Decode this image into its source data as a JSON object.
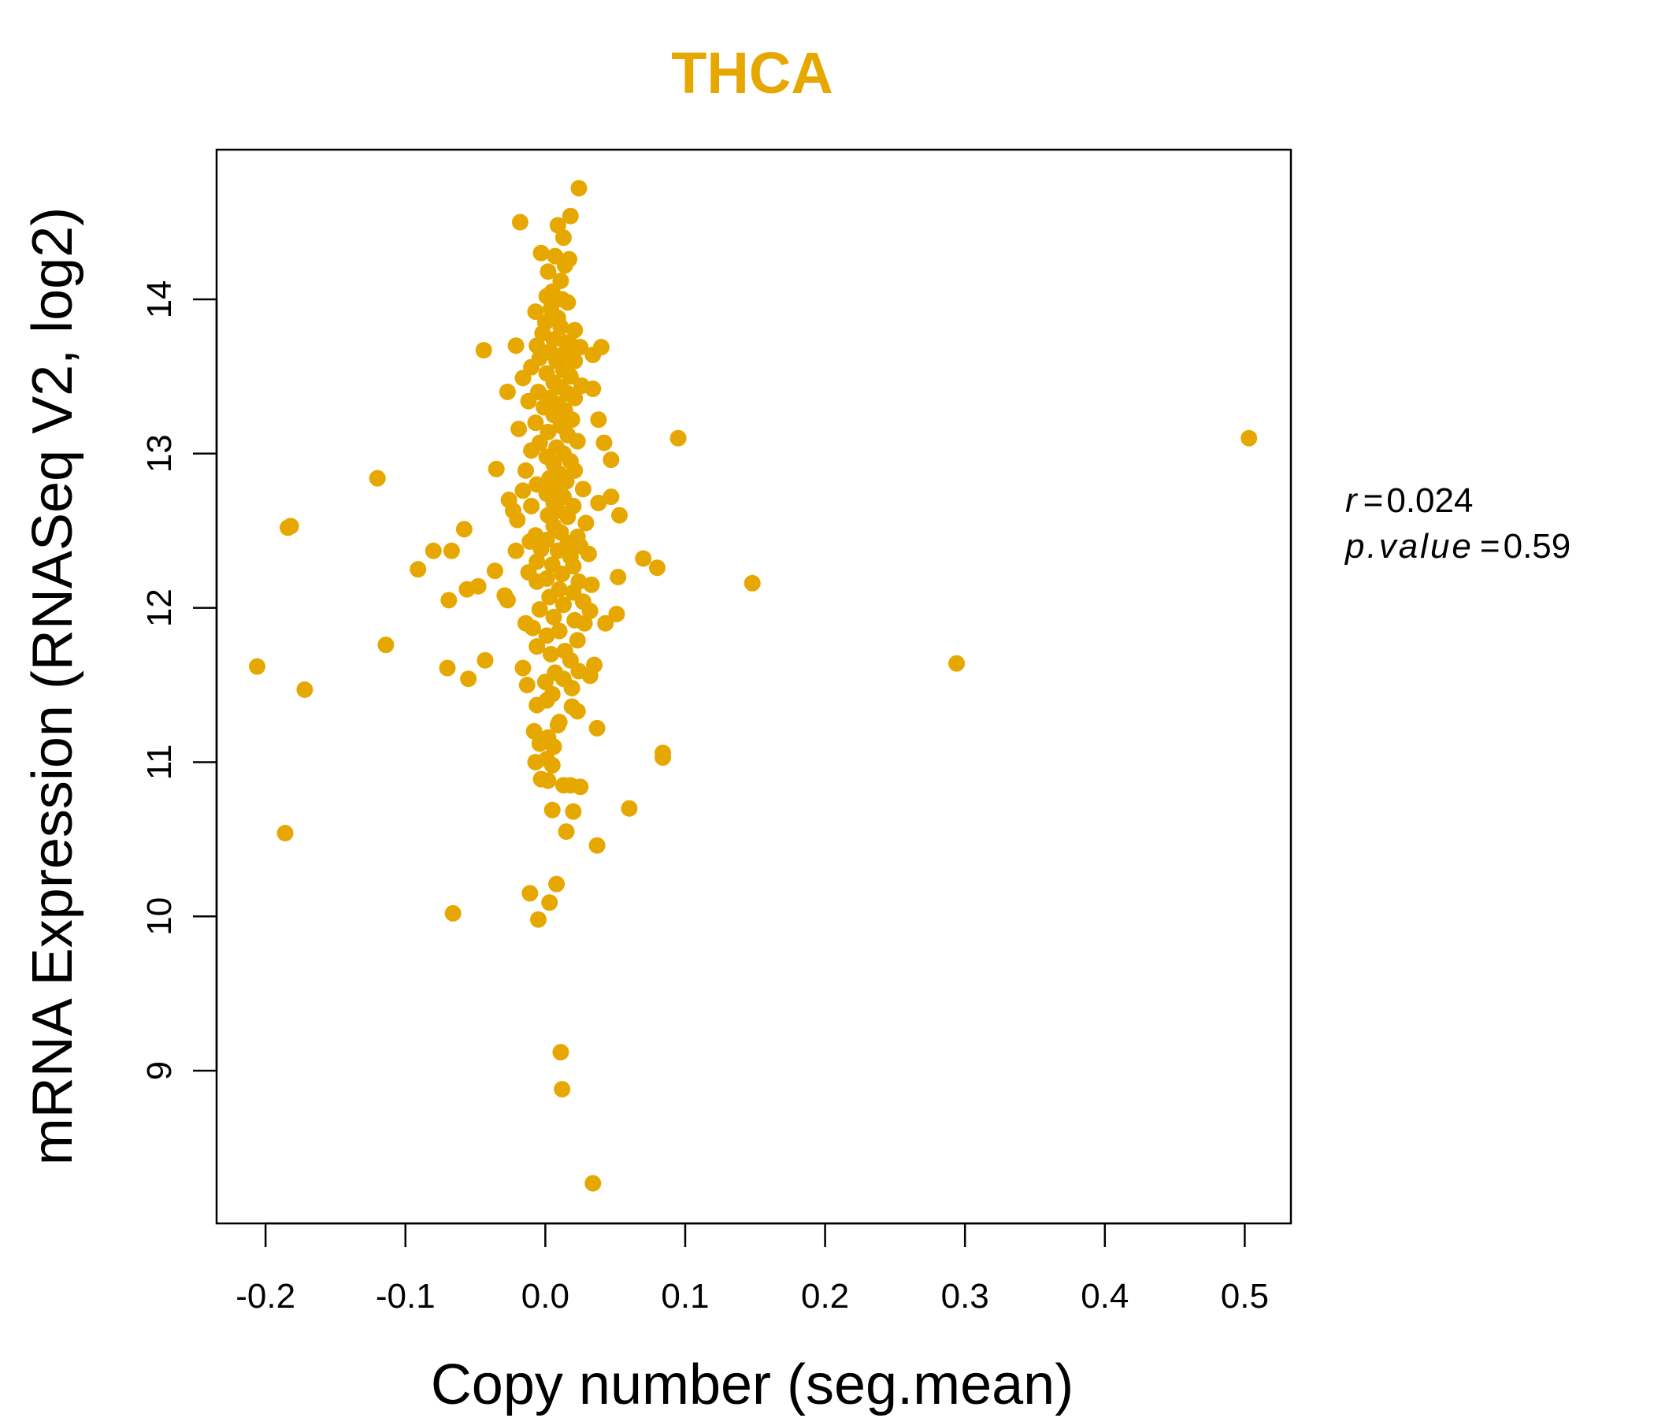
{
  "colors": {
    "point": "#E6A800",
    "title": "#E6A800",
    "axis": "#000000"
  },
  "chart_data": {
    "type": "scatter",
    "title": "THCA",
    "xlabel": "Copy number (seg.mean)",
    "ylabel": "mRNA Expression (RNASeq V2, log2)",
    "xlim": [
      -0.235,
      0.533
    ],
    "ylim": [
      8.01,
      14.97
    ],
    "x_ticks": [
      -0.2,
      -0.1,
      0.0,
      0.1,
      0.2,
      0.3,
      0.4,
      0.5
    ],
    "x_tick_labels": [
      "-0.2",
      "-0.1",
      "0.0",
      "0.1",
      "0.2",
      "0.3",
      "0.4",
      "0.5"
    ],
    "y_ticks": [
      9,
      10,
      11,
      12,
      13,
      14
    ],
    "y_tick_labels": [
      "9",
      "10",
      "11",
      "12",
      "13",
      "14"
    ],
    "grid": false,
    "annotation": {
      "r_label": "r",
      "r_value": "0.024",
      "p_label": "p.value",
      "p_value": "0.59"
    },
    "points": [
      [
        0.024,
        14.72
      ],
      [
        0.018,
        14.54
      ],
      [
        -0.018,
        14.5
      ],
      [
        0.009,
        14.48
      ],
      [
        0.013,
        14.4
      ],
      [
        -0.003,
        14.3
      ],
      [
        0.007,
        14.28
      ],
      [
        0.017,
        14.26
      ],
      [
        0.014,
        14.22
      ],
      [
        0.002,
        14.18
      ],
      [
        0.011,
        14.12
      ],
      [
        0.005,
        14.05
      ],
      [
        0.001,
        14.02
      ],
      [
        0.012,
        14.0
      ],
      [
        0.016,
        13.98
      ],
      [
        0.004,
        13.94
      ],
      [
        -0.007,
        13.92
      ],
      [
        0.009,
        13.88
      ],
      [
        0.0,
        13.85
      ],
      [
        0.011,
        13.82
      ],
      [
        0.021,
        13.8
      ],
      [
        -0.002,
        13.78
      ],
      [
        0.006,
        13.74
      ],
      [
        0.015,
        13.72
      ],
      [
        -0.021,
        13.7
      ],
      [
        -0.006,
        13.7
      ],
      [
        0.019,
        13.7
      ],
      [
        0.025,
        13.69
      ],
      [
        0.04,
        13.69
      ],
      [
        -0.044,
        13.67
      ],
      [
        0.003,
        13.66
      ],
      [
        0.012,
        13.64
      ],
      [
        0.034,
        13.64
      ],
      [
        -0.004,
        13.62
      ],
      [
        0.008,
        13.6
      ],
      [
        0.021,
        13.6
      ],
      [
        -0.01,
        13.56
      ],
      [
        0.013,
        13.54
      ],
      [
        0.001,
        13.52
      ],
      [
        0.018,
        13.5
      ],
      [
        -0.016,
        13.49
      ],
      [
        0.006,
        13.46
      ],
      [
        0.026,
        13.44
      ],
      [
        0.011,
        13.43
      ],
      [
        0.034,
        13.42
      ],
      [
        -0.005,
        13.4
      ],
      [
        -0.027,
        13.4
      ],
      [
        0.016,
        13.39
      ],
      [
        0.003,
        13.36
      ],
      [
        0.021,
        13.36
      ],
      [
        -0.012,
        13.34
      ],
      [
        0.009,
        13.32
      ],
      [
        -0.001,
        13.3
      ],
      [
        0.014,
        13.28
      ],
      [
        0.006,
        13.25
      ],
      [
        0.019,
        13.22
      ],
      [
        0.038,
        13.22
      ],
      [
        -0.007,
        13.2
      ],
      [
        0.011,
        13.18
      ],
      [
        -0.019,
        13.16
      ],
      [
        0.002,
        13.14
      ],
      [
        0.016,
        13.12
      ],
      [
        0.095,
        13.1
      ],
      [
        0.503,
        13.1
      ],
      [
        0.023,
        13.08
      ],
      [
        -0.004,
        13.07
      ],
      [
        0.042,
        13.07
      ],
      [
        0.008,
        13.04
      ],
      [
        -0.01,
        13.02
      ],
      [
        0.013,
        13.0
      ],
      [
        0.001,
        12.98
      ],
      [
        0.047,
        12.96
      ],
      [
        0.018,
        12.95
      ],
      [
        0.006,
        12.93
      ],
      [
        -0.035,
        12.9
      ],
      [
        -0.014,
        12.89
      ],
      [
        0.021,
        12.89
      ],
      [
        0.01,
        12.87
      ],
      [
        -0.12,
        12.84
      ],
      [
        0.003,
        12.84
      ],
      [
        0.015,
        12.82
      ],
      [
        -0.006,
        12.8
      ],
      [
        0.009,
        12.78
      ],
      [
        0.027,
        12.77
      ],
      [
        -0.016,
        12.76
      ],
      [
        0.001,
        12.74
      ],
      [
        0.047,
        12.72
      ],
      [
        0.013,
        12.72
      ],
      [
        -0.026,
        12.7
      ],
      [
        0.006,
        12.68
      ],
      [
        0.038,
        12.68
      ],
      [
        -0.01,
        12.66
      ],
      [
        0.02,
        12.66
      ],
      [
        -0.023,
        12.63
      ],
      [
        0.009,
        12.63
      ],
      [
        0.002,
        12.6
      ],
      [
        0.053,
        12.6
      ],
      [
        0.016,
        12.59
      ],
      [
        -0.02,
        12.57
      ],
      [
        0.029,
        12.55
      ],
      [
        -0.182,
        12.53
      ],
      [
        -0.184,
        12.52
      ],
      [
        0.006,
        12.53
      ],
      [
        -0.058,
        12.51
      ],
      [
        0.011,
        12.49
      ],
      [
        -0.007,
        12.47
      ],
      [
        0.023,
        12.46
      ],
      [
        0.001,
        12.44
      ],
      [
        -0.011,
        12.43
      ],
      [
        0.016,
        12.42
      ],
      [
        0.025,
        12.4
      ],
      [
        -0.003,
        12.38
      ],
      [
        -0.08,
        12.37
      ],
      [
        -0.067,
        12.37
      ],
      [
        -0.021,
        12.37
      ],
      [
        0.009,
        12.37
      ],
      [
        0.031,
        12.35
      ],
      [
        0.018,
        12.33
      ],
      [
        0.07,
        12.32
      ],
      [
        -0.006,
        12.3
      ],
      [
        0.005,
        12.28
      ],
      [
        0.02,
        12.27
      ],
      [
        0.08,
        12.26
      ],
      [
        -0.091,
        12.25
      ],
      [
        -0.036,
        12.24
      ],
      [
        -0.012,
        12.23
      ],
      [
        0.012,
        12.22
      ],
      [
        0.052,
        12.2
      ],
      [
        0.001,
        12.19
      ],
      [
        -0.006,
        12.17
      ],
      [
        0.024,
        12.17
      ],
      [
        0.148,
        12.16
      ],
      [
        0.033,
        12.15
      ],
      [
        -0.048,
        12.14
      ],
      [
        -0.056,
        12.12
      ],
      [
        0.01,
        12.12
      ],
      [
        -0.029,
        12.08
      ],
      [
        0.02,
        12.1
      ],
      [
        0.003,
        12.07
      ],
      [
        -0.027,
        12.05
      ],
      [
        -0.069,
        12.05
      ],
      [
        0.027,
        12.04
      ],
      [
        0.013,
        12.02
      ],
      [
        -0.004,
        11.99
      ],
      [
        0.032,
        11.98
      ],
      [
        0.051,
        11.96
      ],
      [
        0.006,
        11.94
      ],
      [
        0.021,
        11.92
      ],
      [
        0.028,
        11.9
      ],
      [
        -0.014,
        11.9
      ],
      [
        0.043,
        11.9
      ],
      [
        -0.009,
        11.87
      ],
      [
        0.01,
        11.85
      ],
      [
        0.001,
        11.82
      ],
      [
        0.023,
        11.79
      ],
      [
        -0.114,
        11.76
      ],
      [
        -0.006,
        11.75
      ],
      [
        0.014,
        11.72
      ],
      [
        0.004,
        11.7
      ],
      [
        0.018,
        11.66
      ],
      [
        -0.043,
        11.66
      ],
      [
        0.294,
        11.64
      ],
      [
        0.035,
        11.63
      ],
      [
        -0.206,
        11.62
      ],
      [
        -0.016,
        11.61
      ],
      [
        -0.07,
        11.61
      ],
      [
        0.024,
        11.59
      ],
      [
        0.007,
        11.58
      ],
      [
        0.032,
        11.56
      ],
      [
        -0.055,
        11.54
      ],
      [
        0.013,
        11.54
      ],
      [
        0.0,
        11.52
      ],
      [
        -0.013,
        11.5
      ],
      [
        0.019,
        11.48
      ],
      [
        -0.172,
        11.47
      ],
      [
        0.005,
        11.44
      ],
      [
        0.001,
        11.4
      ],
      [
        -0.006,
        11.37
      ],
      [
        0.019,
        11.36
      ],
      [
        0.023,
        11.33
      ],
      [
        0.01,
        11.26
      ],
      [
        0.009,
        11.24
      ],
      [
        0.037,
        11.22
      ],
      [
        -0.008,
        11.2
      ],
      [
        0.002,
        11.16
      ],
      [
        -0.004,
        11.12
      ],
      [
        0.006,
        11.1
      ],
      [
        0.084,
        11.06
      ],
      [
        0.084,
        11.03
      ],
      [
        0.001,
        11.02
      ],
      [
        -0.007,
        11.0
      ],
      [
        0.005,
        10.98
      ],
      [
        -0.003,
        10.89
      ],
      [
        0.002,
        10.88
      ],
      [
        0.013,
        10.85
      ],
      [
        0.018,
        10.85
      ],
      [
        0.025,
        10.84
      ],
      [
        0.06,
        10.7
      ],
      [
        0.005,
        10.69
      ],
      [
        0.02,
        10.68
      ],
      [
        0.015,
        10.55
      ],
      [
        -0.186,
        10.54
      ],
      [
        0.037,
        10.46
      ],
      [
        0.008,
        10.21
      ],
      [
        -0.011,
        10.15
      ],
      [
        0.003,
        10.09
      ],
      [
        -0.066,
        10.02
      ],
      [
        -0.005,
        9.98
      ],
      [
        0.011,
        9.12
      ],
      [
        0.012,
        8.88
      ],
      [
        0.034,
        8.27
      ]
    ]
  }
}
